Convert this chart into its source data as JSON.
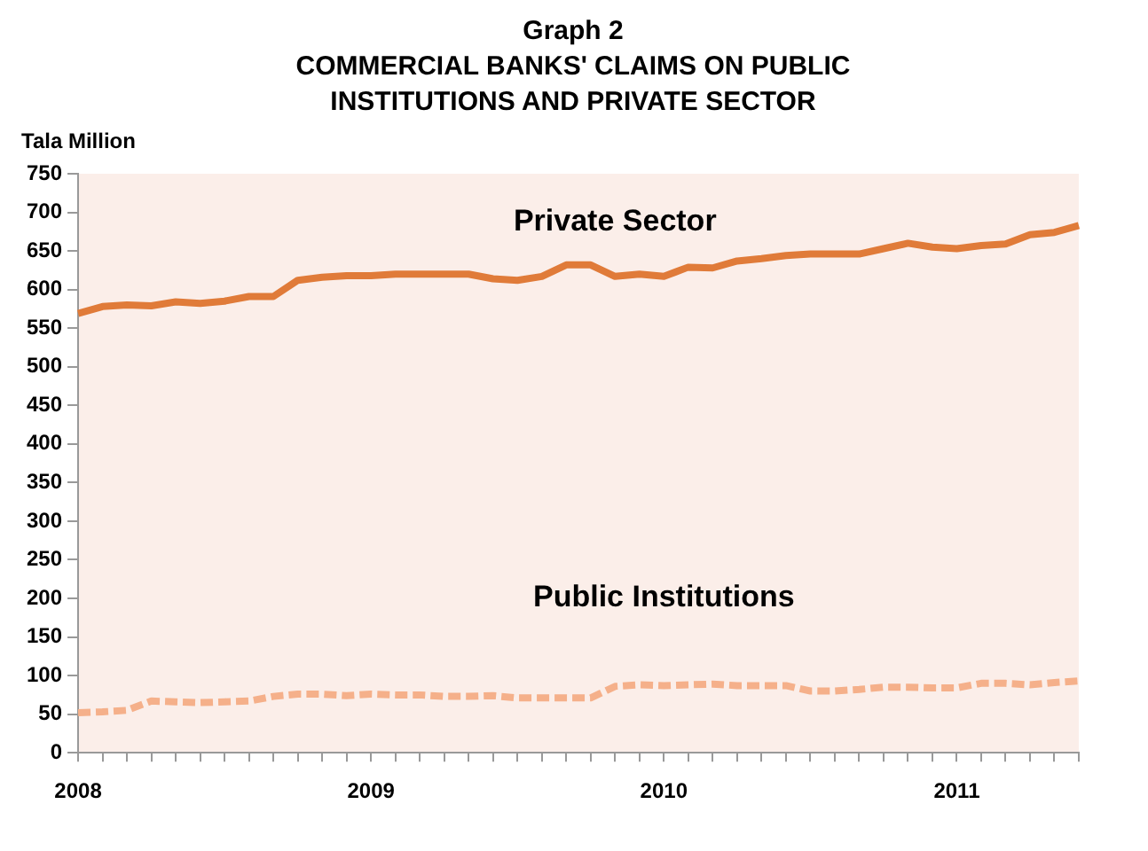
{
  "chart_data": {
    "type": "line",
    "title": "Graph 2",
    "subtitle": "COMMERCIAL BANKS' CLAIMS ON PUBLIC INSTITUTIONS AND PRIVATE SECTOR",
    "ylabel": "Tala Million",
    "categories": [
      "2008",
      null,
      null,
      null,
      null,
      null,
      null,
      null,
      null,
      null,
      null,
      null,
      "2009",
      null,
      null,
      null,
      null,
      null,
      null,
      null,
      null,
      null,
      null,
      null,
      "2010",
      null,
      null,
      null,
      null,
      null,
      null,
      null,
      null,
      null,
      null,
      null,
      "2011",
      null,
      null,
      null,
      null,
      null
    ],
    "series": [
      {
        "name": "Private Sector",
        "color": "#e07b39",
        "line_style": "solid",
        "values": [
          569,
          578,
          580,
          579,
          584,
          582,
          585,
          591,
          591,
          612,
          616,
          618,
          618,
          620,
          620,
          620,
          620,
          614,
          612,
          617,
          632,
          632,
          617,
          620,
          617,
          629,
          628,
          637,
          640,
          644,
          646,
          646,
          646,
          653,
          660,
          655,
          653,
          657,
          659,
          671,
          674,
          683
        ]
      },
      {
        "name": "Public Institutions",
        "color": "#f5b08a",
        "line_style": "dashed",
        "values": [
          52,
          53,
          55,
          67,
          66,
          65,
          66,
          67,
          73,
          76,
          76,
          74,
          76,
          75,
          75,
          73,
          73,
          74,
          71,
          71,
          71,
          71,
          86,
          88,
          87,
          88,
          89,
          87,
          87,
          87,
          80,
          80,
          82,
          85,
          85,
          84,
          84,
          90,
          90,
          88,
          91,
          93
        ]
      }
    ],
    "ylim": [
      0,
      750
    ],
    "yticks": [
      0,
      50,
      100,
      150,
      200,
      250,
      300,
      350,
      400,
      450,
      500,
      550,
      600,
      650,
      700,
      750
    ],
    "grid": false,
    "legend": false,
    "marker": "none"
  }
}
